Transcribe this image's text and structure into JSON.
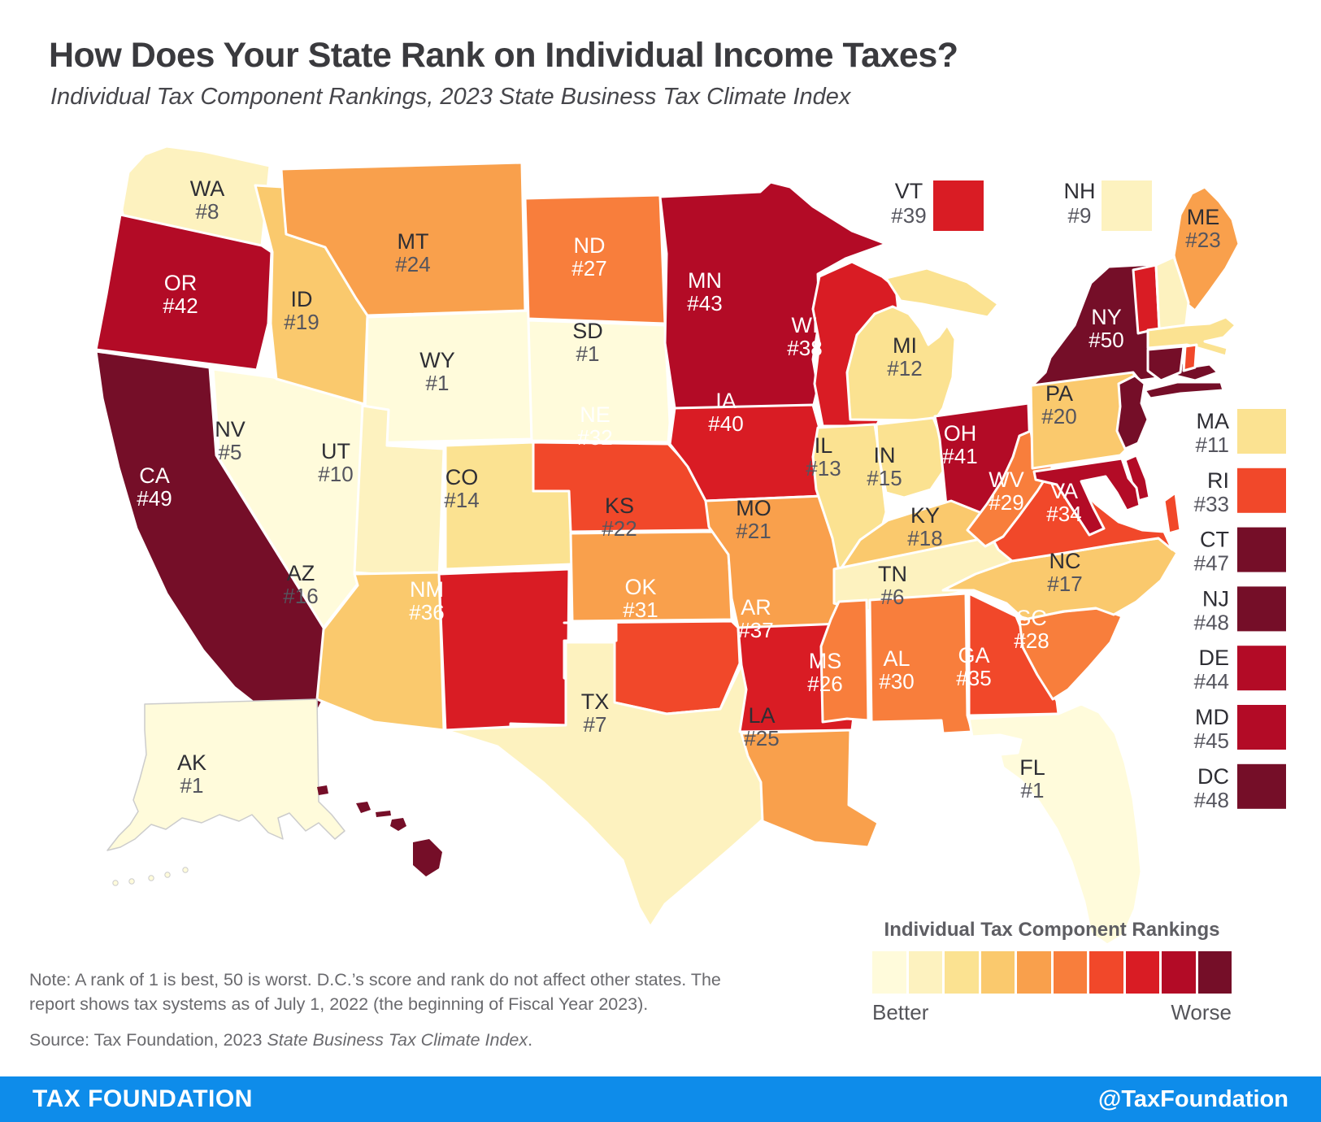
{
  "header": {
    "title": "How Does Your State Rank on Individual Income Taxes?",
    "subtitle": "Individual Tax Component Rankings, 2023 State Business Tax Climate Index"
  },
  "legend": {
    "title": "Individual Tax Component Rankings",
    "better": "Better",
    "worse": "Worse"
  },
  "notes": {
    "note": "Note: A rank of 1 is best, 50 is worst. D.C.’s score and rank do not affect other states. The report shows tax systems as of July 1, 2022 (the beginning of Fiscal Year 2023).",
    "source_prefix": "Source: Tax Foundation, 2023 ",
    "source_italic": "State Business Tax Climate Index",
    "source_suffix": "."
  },
  "footer": {
    "brand": "TAX FOUNDATION",
    "handle": "@TaxFoundation",
    "bg": "#0E8CEA"
  },
  "colors": {
    "palette": [
      "#FFFBDB",
      "#FDF2BF",
      "#FBE291",
      "#FAC96D",
      "#F9A04C",
      "#F87E3C",
      "#F1482A",
      "#D91C24",
      "#B30B26",
      "#750E28"
    ],
    "label_dark": "#2E2E34",
    "rank_dark": "#55555E",
    "label_light": "#FFFFFF"
  },
  "chart_data": {
    "type": "heatmap",
    "title": "Individual Tax Component Rankings, 2023 State Business Tax Climate Index",
    "rank_scale": {
      "best": 1,
      "worst": 50,
      "low_label": "Better",
      "high_label": "Worse"
    },
    "states": [
      {
        "code": "WA",
        "rank": 8
      },
      {
        "code": "OR",
        "rank": 42
      },
      {
        "code": "CA",
        "rank": 49
      },
      {
        "code": "NV",
        "rank": 5
      },
      {
        "code": "ID",
        "rank": 19
      },
      {
        "code": "MT",
        "rank": 24
      },
      {
        "code": "WY",
        "rank": 1
      },
      {
        "code": "UT",
        "rank": 10
      },
      {
        "code": "CO",
        "rank": 14
      },
      {
        "code": "AZ",
        "rank": 16
      },
      {
        "code": "NM",
        "rank": 36
      },
      {
        "code": "ND",
        "rank": 27
      },
      {
        "code": "SD",
        "rank": 1
      },
      {
        "code": "NE",
        "rank": 32
      },
      {
        "code": "KS",
        "rank": 22
      },
      {
        "code": "OK",
        "rank": 31
      },
      {
        "code": "TX",
        "rank": 7
      },
      {
        "code": "MN",
        "rank": 43
      },
      {
        "code": "IA",
        "rank": 40
      },
      {
        "code": "MO",
        "rank": 21
      },
      {
        "code": "AR",
        "rank": 37
      },
      {
        "code": "LA",
        "rank": 25
      },
      {
        "code": "WI",
        "rank": 38
      },
      {
        "code": "IL",
        "rank": 13
      },
      {
        "code": "MI",
        "rank": 12
      },
      {
        "code": "IN",
        "rank": 15
      },
      {
        "code": "OH",
        "rank": 41
      },
      {
        "code": "KY",
        "rank": 18
      },
      {
        "code": "TN",
        "rank": 6
      },
      {
        "code": "MS",
        "rank": 26
      },
      {
        "code": "AL",
        "rank": 30
      },
      {
        "code": "GA",
        "rank": 35
      },
      {
        "code": "FL",
        "rank": 1
      },
      {
        "code": "SC",
        "rank": 28
      },
      {
        "code": "NC",
        "rank": 17
      },
      {
        "code": "VA",
        "rank": 34
      },
      {
        "code": "WV",
        "rank": 29
      },
      {
        "code": "PA",
        "rank": 20
      },
      {
        "code": "NY",
        "rank": 50
      },
      {
        "code": "ME",
        "rank": 23
      },
      {
        "code": "VT",
        "rank": 39
      },
      {
        "code": "NH",
        "rank": 9
      },
      {
        "code": "MA",
        "rank": 11
      },
      {
        "code": "RI",
        "rank": 33
      },
      {
        "code": "CT",
        "rank": 47
      },
      {
        "code": "NJ",
        "rank": 48
      },
      {
        "code": "DE",
        "rank": 44
      },
      {
        "code": "MD",
        "rank": 45
      },
      {
        "code": "DC",
        "rank": 48
      },
      {
        "code": "AK",
        "rank": 1
      },
      {
        "code": "HI",
        "rank": 46
      }
    ],
    "insets_top": [
      "VT",
      "NH"
    ],
    "insets_right": [
      "MA",
      "RI",
      "CT",
      "NJ",
      "DE",
      "MD",
      "DC"
    ]
  }
}
